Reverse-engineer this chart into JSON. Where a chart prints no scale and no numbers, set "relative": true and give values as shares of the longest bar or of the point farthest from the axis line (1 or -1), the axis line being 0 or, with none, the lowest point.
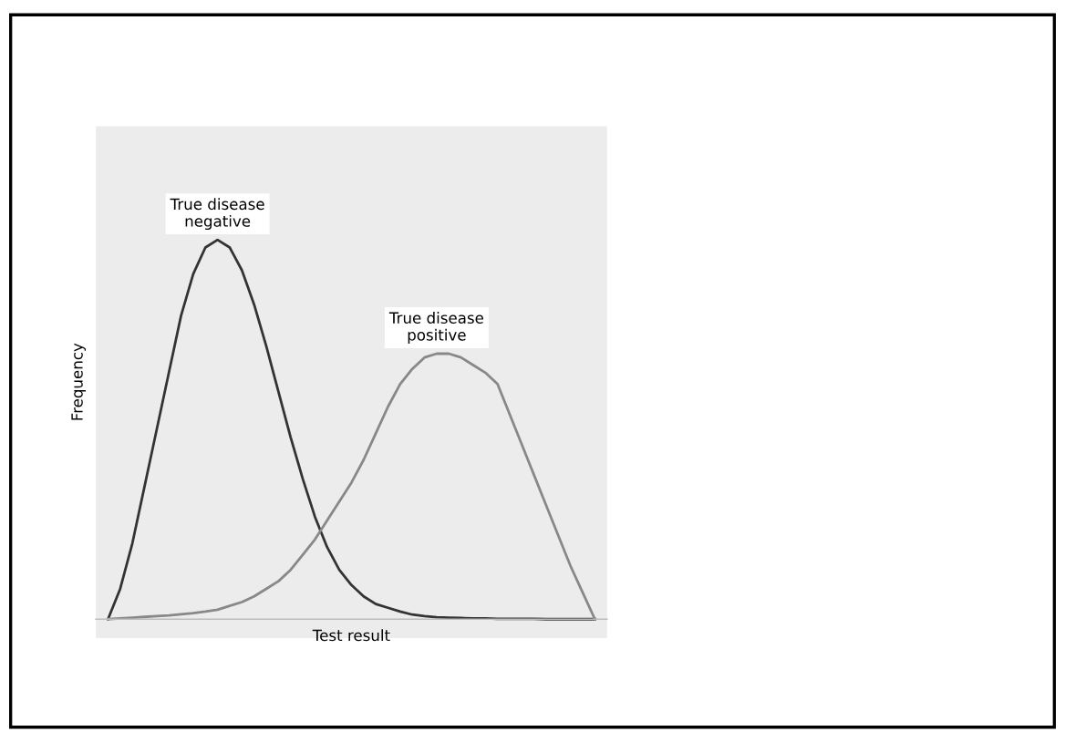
{
  "chart_data": {
    "type": "line",
    "relative": true,
    "xlabel": "Test result",
    "ylabel": "Frequency",
    "categories": [
      null,
      null,
      null,
      null,
      null,
      null,
      null,
      null,
      null,
      null,
      null,
      null,
      null,
      null,
      null,
      null,
      null,
      null,
      null,
      null,
      null,
      null,
      null,
      null,
      null,
      null,
      null,
      null,
      null,
      null,
      null,
      null,
      null,
      null,
      null,
      null,
      null,
      null,
      null,
      null,
      null
    ],
    "series": [
      {
        "color": "#333333",
        "values": [
          0,
          0.08,
          0.2,
          0.35,
          0.5,
          0.65,
          0.8,
          0.91,
          0.98,
          1.0,
          0.98,
          0.92,
          0.83,
          0.72,
          0.6,
          0.48,
          0.37,
          0.27,
          0.19,
          0.13,
          0.09,
          0.06,
          0.04,
          0.03,
          0.02,
          0.012,
          0.008,
          0.005,
          0.004,
          0.003,
          0.002,
          0.002,
          0.001,
          0.001,
          0.001,
          0.001,
          0,
          0,
          0,
          0,
          0
        ]
      },
      {
        "color": "#888888",
        "values": [
          0,
          0.002,
          0.004,
          0.006,
          0.008,
          0.01,
          0.013,
          0.016,
          0.02,
          0.025,
          0.035,
          0.045,
          0.06,
          0.08,
          0.1,
          0.13,
          0.17,
          0.21,
          0.26,
          0.31,
          0.36,
          0.42,
          0.49,
          0.56,
          0.62,
          0.66,
          0.69,
          0.7,
          0.7,
          0.69,
          0.67,
          0.65,
          0.62,
          0.54,
          0.46,
          0.38,
          0.3,
          0.22,
          0.14,
          0.07,
          0
        ]
      }
    ],
    "annotations": [
      "True disease negative",
      "True disease positive"
    ],
    "tick_labels": false,
    "grid": false,
    "legend": false
  }
}
